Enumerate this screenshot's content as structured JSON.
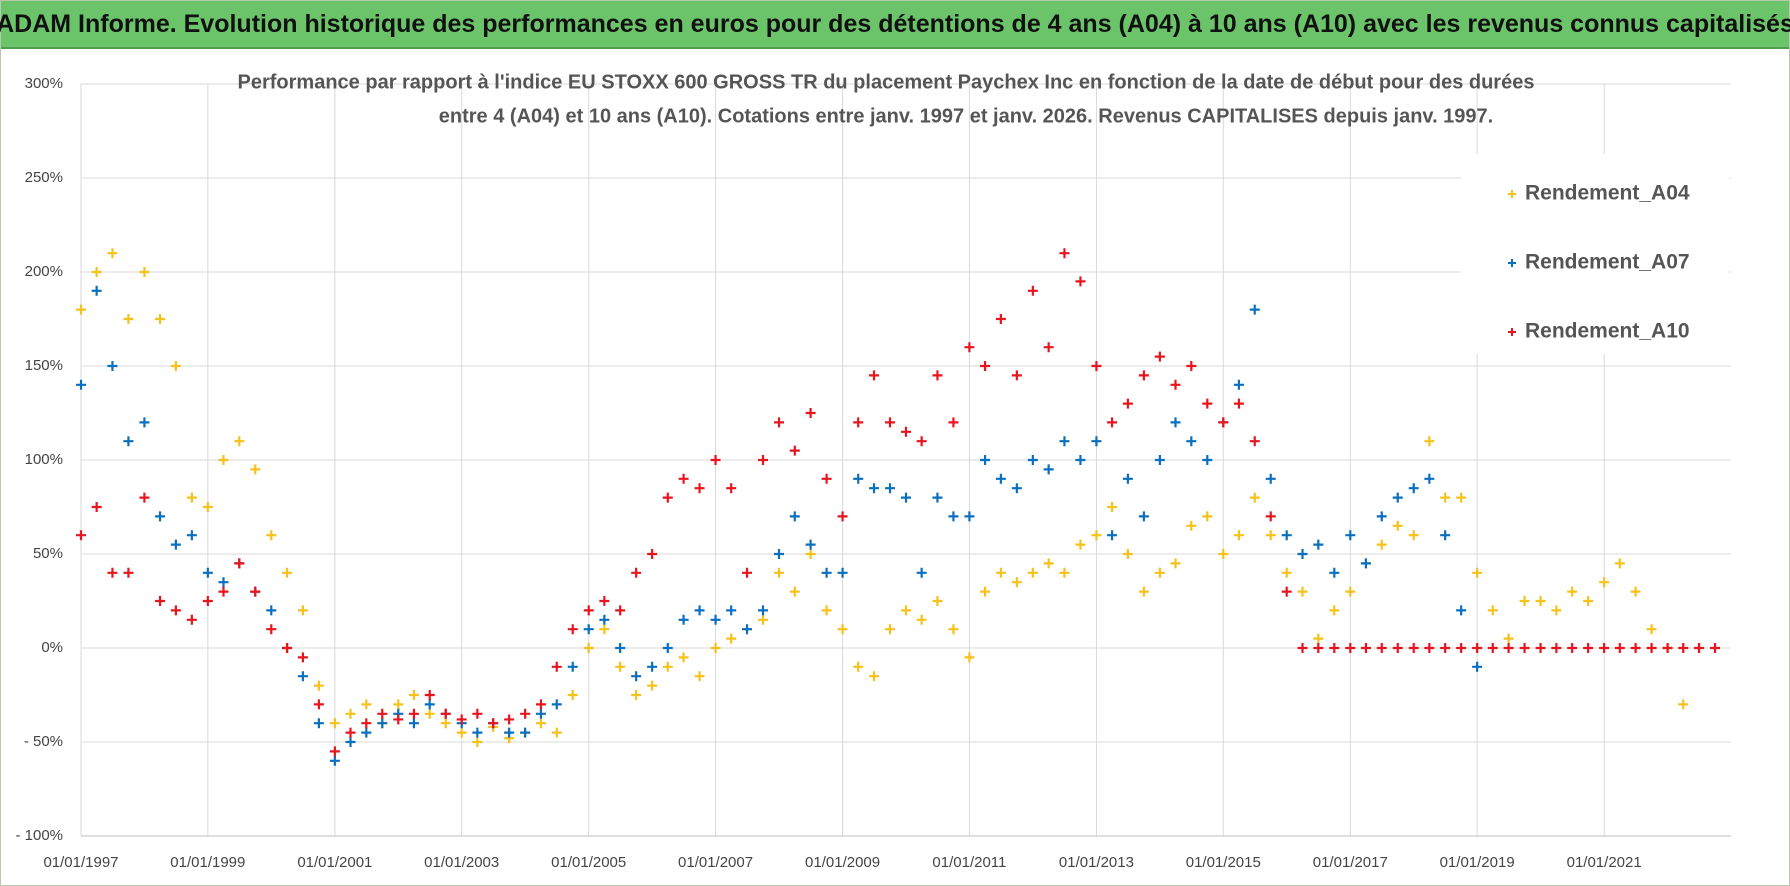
{
  "header": {
    "title": "ADAM Informe. Evolution historique des performances en euros pour des détentions de 4 ans (A04) à 10 ans (A10) avec les revenus connus capitalisés"
  },
  "chart_data": {
    "type": "scatter",
    "title": [
      "Performance par rapport à l'indice EU STOXX 600 GROSS TR  du placement Paychex Inc en fonction de la date de début pour des durées",
      "entre 4 (A04) et 10 ans (A10).  Cotations entre janv. 1997 et janv. 2026. Revenus CAPITALISES  depuis janv. 1997."
    ],
    "x": [
      "1997-01-01",
      "1997-04-01",
      "1997-07-01",
      "1997-10-01",
      "1998-01-01",
      "1998-04-01",
      "1998-07-01",
      "1998-10-01",
      "1999-01-01",
      "1999-04-01",
      "1999-07-01",
      "1999-10-01",
      "2000-01-01",
      "2000-04-01",
      "2000-07-01",
      "2000-10-01",
      "2001-01-01",
      "2001-04-01",
      "2001-07-01",
      "2001-10-01",
      "2002-01-01",
      "2002-04-01",
      "2002-07-01",
      "2002-10-01",
      "2003-01-01",
      "2003-04-01",
      "2003-07-01",
      "2003-10-01",
      "2004-01-01",
      "2004-04-01",
      "2004-07-01",
      "2004-10-01",
      "2005-01-01",
      "2005-04-01",
      "2005-07-01",
      "2005-10-01",
      "2006-01-01",
      "2006-04-01",
      "2006-07-01",
      "2006-10-01",
      "2007-01-01",
      "2007-04-01",
      "2007-07-01",
      "2007-10-01",
      "2008-01-01",
      "2008-04-01",
      "2008-07-01",
      "2008-10-01",
      "2009-01-01",
      "2009-04-01",
      "2009-07-01",
      "2009-10-01",
      "2010-01-01",
      "2010-04-01",
      "2010-07-01",
      "2010-10-01",
      "2011-01-01",
      "2011-04-01",
      "2011-07-01",
      "2011-10-01",
      "2012-01-01",
      "2012-04-01",
      "2012-07-01",
      "2012-10-01",
      "2013-01-01",
      "2013-04-01",
      "2013-07-01",
      "2013-10-01",
      "2014-01-01",
      "2014-04-01",
      "2014-07-01",
      "2014-10-01",
      "2015-01-01",
      "2015-04-01",
      "2015-07-01",
      "2015-10-01",
      "2016-01-01",
      "2016-04-01",
      "2016-07-01",
      "2016-10-01",
      "2017-01-01",
      "2017-04-01",
      "2017-07-01",
      "2017-10-01",
      "2018-01-01",
      "2018-04-01",
      "2018-07-01",
      "2018-10-01",
      "2019-01-01",
      "2019-04-01",
      "2019-07-01",
      "2019-10-01",
      "2020-01-01",
      "2020-04-01",
      "2020-07-01",
      "2020-10-01",
      "2021-01-01",
      "2021-04-01",
      "2021-07-01",
      "2021-10-01",
      "2022-01-01",
      "2022-04-01",
      "2022-07-01",
      "2022-10-01"
    ],
    "series": [
      {
        "name": "Rendement_A04",
        "color": "#f5c21b",
        "values": [
          180,
          200,
          210,
          175,
          200,
          175,
          150,
          80,
          75,
          100,
          110,
          95,
          60,
          40,
          20,
          -20,
          -40,
          -35,
          -30,
          -40,
          -30,
          -25,
          -35,
          -40,
          -45,
          -50,
          -42,
          -48,
          -45,
          -40,
          -45,
          -25,
          0,
          10,
          -10,
          -25,
          -20,
          -10,
          -5,
          -15,
          0,
          5,
          10,
          15,
          40,
          30,
          50,
          20,
          10,
          -10,
          -15,
          10,
          20,
          15,
          25,
          10,
          -5,
          30,
          40,
          35,
          40,
          45,
          40,
          55,
          60,
          75,
          50,
          30,
          40,
          45,
          65,
          70,
          50,
          60,
          80,
          60,
          40,
          30,
          5,
          20,
          30,
          45,
          55,
          65,
          60,
          110,
          80,
          80,
          40,
          20,
          5,
          25,
          25,
          20,
          30,
          25,
          35,
          45,
          30,
          10,
          0,
          -30,
          null,
          null
        ]
      },
      {
        "name": "Rendement_A07",
        "color": "#0a6fbf",
        "values": [
          140,
          190,
          150,
          110,
          120,
          70,
          55,
          60,
          40,
          35,
          45,
          30,
          20,
          0,
          -15,
          -40,
          -60,
          -50,
          -45,
          -40,
          -35,
          -40,
          -30,
          -35,
          -40,
          -45,
          -40,
          -45,
          -45,
          -35,
          -30,
          -10,
          10,
          15,
          0,
          -15,
          -10,
          0,
          15,
          20,
          15,
          20,
          10,
          20,
          50,
          70,
          55,
          40,
          40,
          90,
          85,
          85,
          80,
          40,
          80,
          70,
          70,
          100,
          90,
          85,
          100,
          95,
          110,
          100,
          110,
          60,
          90,
          70,
          100,
          120,
          110,
          100,
          120,
          140,
          180,
          90,
          60,
          50,
          55,
          40,
          60,
          45,
          70,
          80,
          85,
          90,
          60,
          20,
          -10,
          null,
          null,
          null,
          null,
          null,
          null,
          null,
          null,
          null,
          null,
          null,
          null,
          null,
          null,
          null
        ]
      },
      {
        "name": "Rendement_A10",
        "color": "#e8141e",
        "values": [
          60,
          75,
          40,
          40,
          80,
          25,
          20,
          15,
          25,
          30,
          45,
          30,
          10,
          0,
          -5,
          -30,
          -55,
          -45,
          -40,
          -35,
          -38,
          -35,
          -25,
          -35,
          -38,
          -35,
          -40,
          -38,
          -35,
          -30,
          -10,
          10,
          20,
          25,
          20,
          40,
          50,
          80,
          90,
          85,
          100,
          85,
          40,
          100,
          120,
          105,
          125,
          90,
          70,
          120,
          145,
          120,
          115,
          110,
          145,
          120,
          160,
          150,
          175,
          145,
          190,
          160,
          210,
          195,
          150,
          120,
          130,
          145,
          155,
          140,
          150,
          130,
          120,
          130,
          110,
          70,
          30,
          0,
          0,
          0,
          0,
          0,
          0,
          0,
          0,
          0,
          0,
          0,
          0,
          0,
          0,
          0,
          0,
          0,
          0,
          0,
          0,
          0,
          0,
          0,
          0,
          0,
          0,
          0
        ]
      }
    ],
    "xlim": [
      "1997-01-01",
      "2023-01-01"
    ],
    "xticks": [
      {
        "value": "1997-01-01",
        "label": "01/01/1997"
      },
      {
        "value": "1999-01-01",
        "label": "01/01/1999"
      },
      {
        "value": "2001-01-01",
        "label": "01/01/2001"
      },
      {
        "value": "2003-01-01",
        "label": "01/01/2003"
      },
      {
        "value": "2005-01-01",
        "label": "01/01/2005"
      },
      {
        "value": "2007-01-01",
        "label": "01/01/2007"
      },
      {
        "value": "2009-01-01",
        "label": "01/01/2009"
      },
      {
        "value": "2011-01-01",
        "label": "01/01/2011"
      },
      {
        "value": "2013-01-01",
        "label": "01/01/2013"
      },
      {
        "value": "2015-01-01",
        "label": "01/01/2015"
      },
      {
        "value": "2017-01-01",
        "label": "01/01/2017"
      },
      {
        "value": "2019-01-01",
        "label": "01/01/2019"
      },
      {
        "value": "2021-01-01",
        "label": "01/01/2021"
      }
    ],
    "ylim": [
      -100,
      300
    ],
    "yticks": [
      {
        "value": -100,
        "label": "- 100%"
      },
      {
        "value": -50,
        "label": "- 50%"
      },
      {
        "value": 0,
        "label": "0%"
      },
      {
        "value": 50,
        "label": "50%"
      },
      {
        "value": 100,
        "label": "100%"
      },
      {
        "value": 150,
        "label": "150%"
      },
      {
        "value": 200,
        "label": "200%"
      },
      {
        "value": 250,
        "label": "250%"
      },
      {
        "value": 300,
        "label": "300%"
      }
    ],
    "grid": true,
    "legend": "upper right"
  }
}
